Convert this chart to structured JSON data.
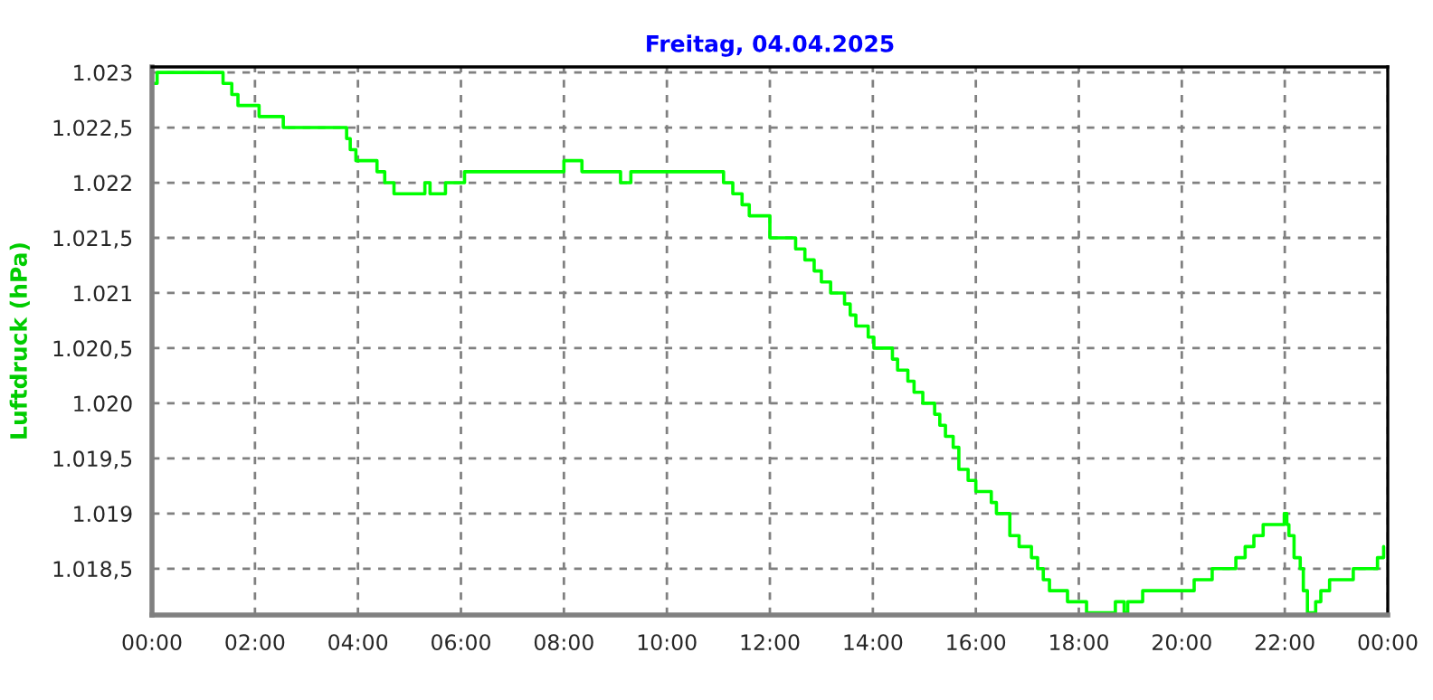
{
  "chart_data": {
    "type": "step",
    "title": "Freitag, 04.04.2025",
    "ylabel": "Luftdruck (hPa)",
    "series": [
      {
        "color": "#00ff00",
        "x": [
          0,
          0.1,
          1.38,
          1.55,
          1.67,
          2.08,
          2.55,
          3.78,
          3.85,
          3.96,
          4.08,
          4.37,
          4.52,
          4.7,
          5.3,
          5.4,
          5.7,
          6.07,
          6.5,
          8.0,
          8.35,
          9.1,
          9.3,
          10.05,
          11.1,
          11.28,
          11.46,
          11.6,
          12.0,
          12.5,
          12.68,
          12.86,
          13.0,
          13.18,
          13.45,
          13.56,
          13.67,
          13.91,
          14.02,
          14.38,
          14.48,
          14.68,
          14.8,
          14.97,
          15.2,
          15.3,
          15.41,
          15.56,
          15.67,
          15.85,
          16.0,
          16.3,
          16.4,
          16.66,
          16.84,
          17.08,
          17.2,
          17.31,
          17.43,
          17.78,
          18.15,
          18.71,
          18.88,
          18.95,
          19.24,
          20.24,
          20.59,
          21.0,
          21.05,
          21.23,
          21.4,
          21.58,
          21.99,
          22.04,
          22.08,
          22.18,
          22.3,
          22.36,
          22.44,
          22.6,
          22.7,
          22.87,
          23.33,
          23.8,
          23.92
        ],
        "values": [
          1022.9,
          1023.0,
          1022.9,
          1022.8,
          1022.7,
          1022.6,
          1022.5,
          1022.4,
          1022.3,
          1022.2,
          1022.2,
          1022.1,
          1022.0,
          1021.9,
          1022.0,
          1021.9,
          1022.0,
          1022.1,
          1022.1,
          1022.2,
          1022.1,
          1022.0,
          1022.1,
          1022.1,
          1022.0,
          1021.9,
          1021.8,
          1021.7,
          1021.5,
          1021.4,
          1021.3,
          1021.2,
          1021.1,
          1021.0,
          1020.9,
          1020.8,
          1020.7,
          1020.6,
          1020.5,
          1020.4,
          1020.3,
          1020.2,
          1020.1,
          1020.0,
          1019.9,
          1019.8,
          1019.7,
          1019.6,
          1019.4,
          1019.3,
          1019.2,
          1019.1,
          1019.0,
          1018.8,
          1018.7,
          1018.6,
          1018.5,
          1018.4,
          1018.3,
          1018.2,
          1018.1,
          1018.2,
          1018.1,
          1018.2,
          1018.3,
          1018.4,
          1018.5,
          1018.5,
          1018.6,
          1018.7,
          1018.8,
          1018.9,
          1019.0,
          1018.9,
          1018.8,
          1018.6,
          1018.5,
          1018.3,
          1018.1,
          1018.2,
          1018.3,
          1018.4,
          1018.5,
          1018.6,
          1018.7
        ]
      }
    ],
    "xlim": [
      0,
      24
    ],
    "xticks": [
      {
        "value": 0,
        "label": "00:00"
      },
      {
        "value": 2,
        "label": "02:00"
      },
      {
        "value": 4,
        "label": "04:00"
      },
      {
        "value": 6,
        "label": "06:00"
      },
      {
        "value": 8,
        "label": "08:00"
      },
      {
        "value": 10,
        "label": "10:00"
      },
      {
        "value": 12,
        "label": "12:00"
      },
      {
        "value": 14,
        "label": "14:00"
      },
      {
        "value": 16,
        "label": "16:00"
      },
      {
        "value": 18,
        "label": "18:00"
      },
      {
        "value": 20,
        "label": "20:00"
      },
      {
        "value": 22,
        "label": "22:00"
      },
      {
        "value": 24,
        "label": "00:00"
      }
    ],
    "ylim": [
      1018.08,
      1023.05
    ],
    "yticks": [
      {
        "value": 1018.5,
        "label": "1.018,5"
      },
      {
        "value": 1019,
        "label": "1.019"
      },
      {
        "value": 1019.5,
        "label": "1.019,5"
      },
      {
        "value": 1020,
        "label": "1.020"
      },
      {
        "value": 1020.5,
        "label": "1.020,5"
      },
      {
        "value": 1021,
        "label": "1.021"
      },
      {
        "value": 1021.5,
        "label": "1.021,5"
      },
      {
        "value": 1022,
        "label": "1.022"
      },
      {
        "value": 1022.5,
        "label": "1.022,5"
      },
      {
        "value": 1023,
        "label": "1.023"
      }
    ],
    "grid": true,
    "line_style": "solid"
  }
}
